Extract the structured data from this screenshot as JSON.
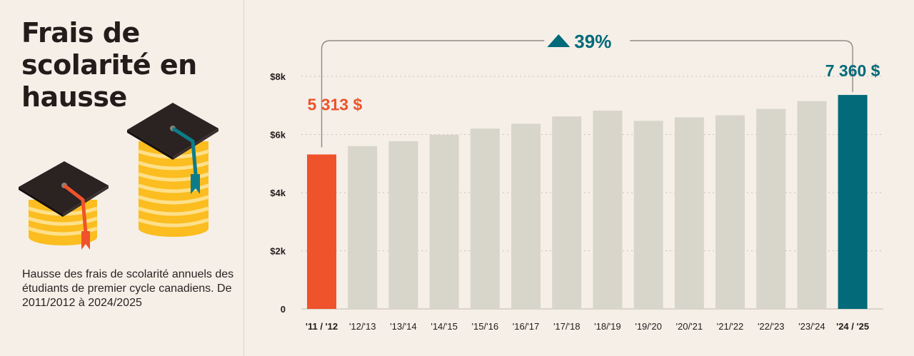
{
  "title": "Frais de scolarité en hausse",
  "subtitle": "Hausse des frais de scolarité annuels des étudiants de premier cycle canadiens. De 2011/2012 à 2024/2025",
  "chart_data": {
    "type": "bar",
    "categories": [
      "'11 / '12",
      "'12/'13",
      "'13/'14",
      "'14/'15",
      "'15/'16",
      "'16/'17",
      "'17/'18",
      "'18/'19",
      "'19/'20",
      "'20/'21",
      "'21/'22",
      "'22/'23",
      "'23/'24",
      "'24 / '25"
    ],
    "values": [
      5313,
      5600,
      5770,
      5990,
      6200,
      6370,
      6620,
      6820,
      6470,
      6590,
      6660,
      6880,
      7150,
      7360
    ],
    "ylim": [
      0,
      8000
    ],
    "yticks": [
      0,
      2000,
      4000,
      6000,
      8000
    ],
    "ytick_labels": [
      "0",
      "$2k",
      "$4k",
      "$6k",
      "$8k"
    ],
    "grid": true,
    "colors": {
      "default": "#d8d5ca",
      "first": "#ee532b",
      "last": "#026a79",
      "text": "#241b1b",
      "grid": "#c9c2b8",
      "bracket": "#8e8a84"
    },
    "highlight_first": true,
    "highlight_last": true,
    "annotations": {
      "first_label": "5 313 $",
      "last_label": "7 360 $",
      "change_label": "39%",
      "change_icon": "triangle-up-icon"
    }
  }
}
